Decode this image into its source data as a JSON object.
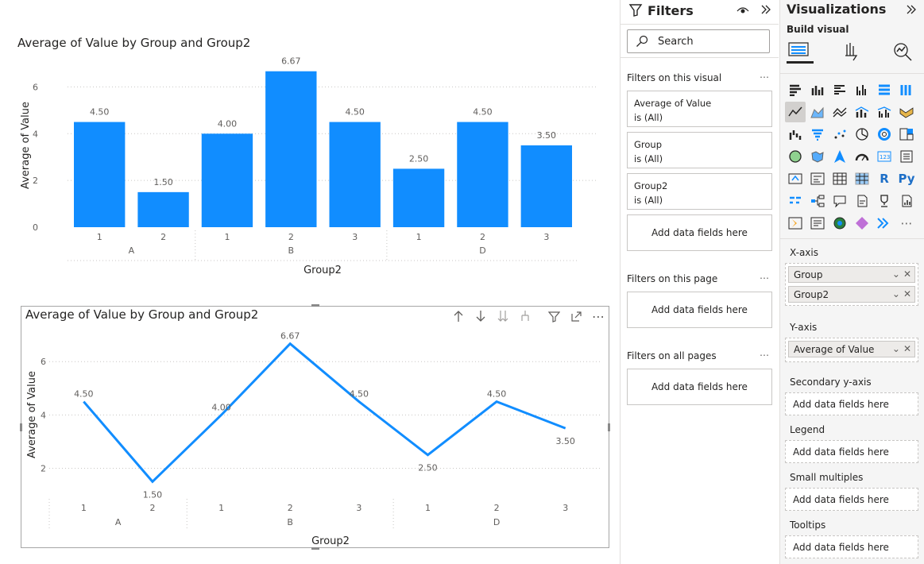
{
  "report": {
    "bar_visual": {
      "title": "Average of Value by Group and Group2"
    },
    "line_visual": {
      "title": "Average of Value by Group and Group2"
    },
    "toolbar": {
      "drill_up_icon": "arrow-up-icon",
      "drill_down_icon": "arrow-down-icon",
      "expand_next_level_icon": "double-arrow-down-icon",
      "expand_hierarchy_icon": "fork-down-icon",
      "filter_icon": "funnel-icon",
      "focus_mode_icon": "focus-mode-icon",
      "more_options": "⋯"
    }
  },
  "chart_data": [
    {
      "type": "bar",
      "title": "Average of Value by Group and Group2",
      "xlabel": "Group2",
      "ylabel": "Average of Value",
      "groups": [
        {
          "name": "A",
          "subcategories": [
            "1",
            "2"
          ]
        },
        {
          "name": "B",
          "subcategories": [
            "1",
            "2",
            "3"
          ]
        },
        {
          "name": "D",
          "subcategories": [
            "1",
            "2",
            "3"
          ]
        }
      ],
      "values": [
        4.5,
        1.5,
        4.0,
        6.67,
        4.5,
        2.5,
        4.5,
        3.5
      ],
      "data_labels": [
        "4.50",
        "1.50",
        "4.00",
        "6.67",
        "4.50",
        "2.50",
        "4.50",
        "3.50"
      ],
      "yticks": [
        "0",
        "2",
        "4",
        "6"
      ],
      "ylim": [
        0,
        7
      ],
      "color": "#118dff",
      "grid": true
    },
    {
      "type": "line",
      "title": "Average of Value by Group and Group2",
      "xlabel": "Group2",
      "ylabel": "Average of Value",
      "groups": [
        {
          "name": "A",
          "subcategories": [
            "1",
            "2"
          ]
        },
        {
          "name": "B",
          "subcategories": [
            "1",
            "2",
            "3"
          ]
        },
        {
          "name": "D",
          "subcategories": [
            "1",
            "2",
            "3"
          ]
        }
      ],
      "values": [
        4.5,
        1.5,
        4.0,
        6.67,
        4.5,
        2.5,
        4.5,
        3.5
      ],
      "data_labels": [
        "4.50",
        "1.50",
        "4.00",
        "6.67",
        "4.50",
        "2.50",
        "4.50",
        "3.50"
      ],
      "yticks": [
        "2",
        "4",
        "6"
      ],
      "ylim": [
        1.3,
        6.9
      ],
      "color": "#118dff",
      "grid": true
    }
  ],
  "filters": {
    "title": "Filters",
    "eye_icon": "eye-icon",
    "collapse_icon": "double-chevron-right-icon",
    "search_placeholder": "Search",
    "on_visual_label": "Filters on this visual",
    "cards": [
      {
        "field": "Average of Value",
        "state": "is (All)"
      },
      {
        "field": "Group",
        "state": "is (All)"
      },
      {
        "field": "Group2",
        "state": "is (All)"
      }
    ],
    "add_fields": "Add data fields here",
    "on_page_label": "Filters on this page",
    "on_page_add": "Add data fields here",
    "all_pages_label": "Filters on all pages",
    "all_pages_add": "Add data fields here",
    "more": "⋯"
  },
  "visualizations": {
    "title": "Visualizations",
    "build_visual": "Build visual",
    "x_axis_label": "X-axis",
    "x_axis_fields": [
      "Group",
      "Group2"
    ],
    "y_axis_label": "Y-axis",
    "y_axis_fields": [
      "Average of Value"
    ],
    "secondary_label": "Secondary y-axis",
    "secondary_add": "Add data fields here",
    "legend_label": "Legend",
    "legend_add": "Add data fields here",
    "small_multiples_label": "Small multiples",
    "small_multiples_add": "Add data fields here",
    "tooltips_label": "Tooltips",
    "tooltips_add": "Add data fields here",
    "r_icon_text": "R",
    "py_icon_text": "Py",
    "more_visuals": "⋯"
  }
}
